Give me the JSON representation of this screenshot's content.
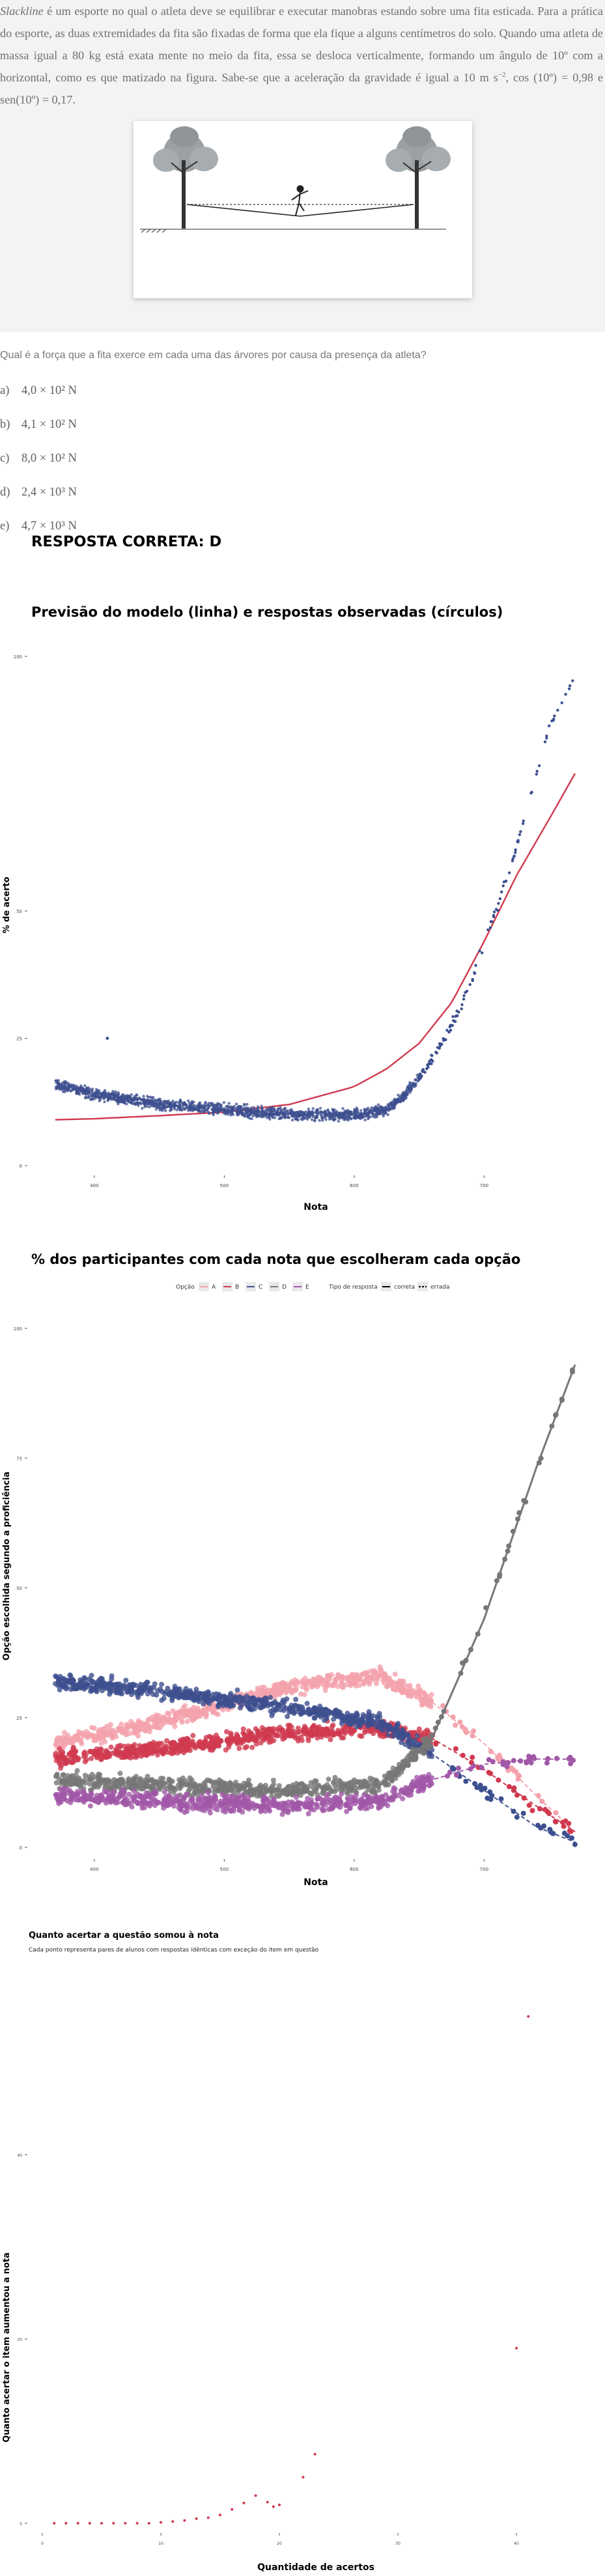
{
  "question": {
    "intro_italic": "Slackline",
    "intro_rest": " é um esporte no qual o atleta deve se equilibrar e executar manobras estando sobre uma fita esticada. Para a prática do esporte, as duas extremidades da fita são fixadas de forma que ela fique a alguns centímetros do solo. Quando uma atleta de massa igual a 80 kg está exata mente no meio da fita, essa se desloca verticalmente, formando um ângulo de 10º com a horizontal, como es que matizado na figura. Sabe-se que a aceleração da gravidade é igual a 10 m s",
    "intro_exp": "−2",
    "intro_end": ", cos (10º) = 0,98 e sen(10º) = 0,17.",
    "stem": "Qual é a força que a fita exerce em cada uma das árvores por causa da presença da atleta?",
    "alternatives": [
      {
        "letter": "a)",
        "text": "4,0 × 10² N"
      },
      {
        "letter": "b)",
        "text": "4,1 × 10² N"
      },
      {
        "letter": "c)",
        "text": "8,0 × 10² N"
      },
      {
        "letter": "d)",
        "text": "2,4 × 10³ N"
      },
      {
        "letter": "e)",
        "text": "4,7 × 10³ N"
      }
    ],
    "answer": "RESPOSTA CORRETA: D"
  },
  "colors": {
    "navy": "#3d4f8f",
    "red": "#d0394f",
    "optA": "#f4a2ad",
    "optB": "#d0394f",
    "optC": "#3d4f8f",
    "optD": "#777777",
    "optE": "#a158a8"
  },
  "chart_data": [
    {
      "type": "scatter",
      "title": "Previsão do modelo (linha) e respostas observadas (círculos)",
      "xlabel": "Nota",
      "ylabel": "% de acerto",
      "xticks": [
        "400",
        "500",
        "600",
        "700"
      ],
      "yticks": [
        "0",
        "25",
        "50",
        "100"
      ],
      "series": [
        {
          "kind": "model-line",
          "x": [
            370,
            400,
            450,
            500,
            550,
            600,
            625,
            650,
            675,
            700,
            725,
            750,
            770
          ],
          "y": [
            9,
            9.2,
            9.8,
            10.5,
            12,
            15.5,
            19,
            24,
            32,
            44,
            57,
            68,
            77
          ]
        },
        {
          "kind": "observed",
          "x": [
            370,
            400,
            450,
            500,
            550,
            600,
            625,
            640,
            660,
            680,
            690,
            700,
            710,
            720,
            735,
            750,
            770
          ],
          "y": [
            16,
            14,
            12,
            11,
            10,
            10,
            11,
            14,
            21,
            30,
            36,
            44,
            51,
            58,
            72,
            86,
            96
          ]
        }
      ]
    },
    {
      "type": "scatter",
      "title": "% dos participantes com cada nota que escolheram cada opção",
      "xlabel": "Nota",
      "ylabel": "Opção escolhida segundo a proficiência",
      "xticks": [
        "400",
        "500",
        "600",
        "700"
      ],
      "yticks": [
        "0",
        "25",
        "50",
        "75",
        "100"
      ],
      "legend": {
        "option_title": "Opção",
        "options": [
          "A",
          "B",
          "C",
          "D",
          "E"
        ],
        "type_title": "Tipo de resposta",
        "types": [
          "correta",
          "errada"
        ],
        "position": "top"
      },
      "series": [
        {
          "name": "A",
          "x": [
            370,
            450,
            550,
            620,
            660,
            700,
            740,
            770
          ],
          "y": [
            20,
            24,
            31,
            33,
            28,
            20,
            10,
            3
          ]
        },
        {
          "name": "B",
          "x": [
            370,
            450,
            550,
            620,
            660,
            700,
            740,
            770
          ],
          "y": [
            17,
            19,
            22,
            23,
            21,
            15,
            8,
            3
          ]
        },
        {
          "name": "C",
          "x": [
            370,
            450,
            550,
            620,
            660,
            700,
            740,
            770
          ],
          "y": [
            32,
            30,
            27,
            24,
            18,
            11,
            4,
            1
          ]
        },
        {
          "name": "D",
          "x": [
            370,
            450,
            550,
            620,
            660,
            700,
            740,
            770
          ],
          "y": [
            13,
            12,
            11,
            12,
            21,
            44,
            73,
            93
          ]
        },
        {
          "name": "E",
          "x": [
            370,
            450,
            550,
            620,
            660,
            700,
            740,
            770
          ],
          "y": [
            10,
            9,
            8,
            9,
            13,
            16,
            17,
            17
          ]
        }
      ]
    },
    {
      "type": "scatter",
      "title": "Quanto acertar a questão somou à nota",
      "subtitle": "Cada ponto representa pares de alunos com respostas idênticas com exceção do item em questão",
      "xlabel": "Quantidade de acertos",
      "ylabel": "Quanto acertar o item aumentou a nota",
      "xticks": [
        "0",
        "10",
        "20",
        "30",
        "40"
      ],
      "yticks": [
        "0",
        "20",
        "40"
      ],
      "series": [
        {
          "x": [
            1,
            2,
            3,
            4,
            5,
            6,
            7,
            8,
            9,
            10,
            11,
            12,
            13,
            14,
            15,
            16,
            17,
            18,
            19,
            19.5,
            20,
            22,
            23,
            40,
            41
          ],
          "y": [
            0,
            0,
            0,
            0,
            0,
            0,
            0,
            0,
            0,
            0.1,
            0.2,
            0.3,
            0.5,
            0.6,
            0.9,
            1.5,
            2.2,
            3.0,
            2.3,
            1.8,
            2.0,
            5.0,
            7.5,
            19,
            55
          ]
        }
      ]
    }
  ]
}
